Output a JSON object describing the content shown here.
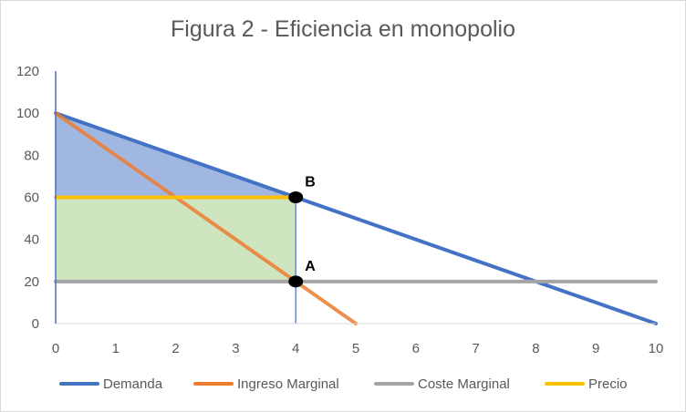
{
  "chart_data": {
    "type": "line",
    "title": "Figura 2 - Eficiencia en monopolio",
    "xlabel": "",
    "ylabel": "",
    "xlim": [
      0,
      10
    ],
    "ylim": [
      0,
      120
    ],
    "x_ticks": [
      "0",
      "1",
      "2",
      "3",
      "4",
      "5",
      "6",
      "7",
      "8",
      "9",
      "10"
    ],
    "y_ticks": [
      "0",
      "20",
      "40",
      "60",
      "80",
      "100",
      "120"
    ],
    "grid": false,
    "legend_position": "bottom",
    "series": [
      {
        "name": "Demanda",
        "color": "#4472C4",
        "x": [
          0,
          10
        ],
        "y": [
          100,
          0
        ]
      },
      {
        "name": "Ingreso Marginal",
        "color": "#ED7D31",
        "x": [
          0,
          5
        ],
        "y": [
          100,
          0
        ]
      },
      {
        "name": "Coste Marginal",
        "color": "#A5A5A5",
        "x": [
          0,
          10
        ],
        "y": [
          20,
          20
        ]
      },
      {
        "name": "Precio",
        "color": "#FFC000",
        "x": [
          0,
          4
        ],
        "y": [
          60,
          60
        ]
      }
    ],
    "shaded_regions": [
      {
        "color": "#8FAADC",
        "x": [
          0,
          0,
          4
        ],
        "y": [
          100,
          60,
          60
        ]
      },
      {
        "color": "#C5E0B4",
        "x": [
          0,
          0,
          4,
          4
        ],
        "y": [
          20,
          60,
          60,
          20
        ]
      }
    ],
    "vertical_line": {
      "x": 4,
      "y_from": 0,
      "y_to": 60,
      "color": "#4472C4"
    },
    "points": [
      {
        "label": "B",
        "x": 4,
        "y": 60
      },
      {
        "label": "A",
        "x": 4,
        "y": 20
      }
    ]
  }
}
